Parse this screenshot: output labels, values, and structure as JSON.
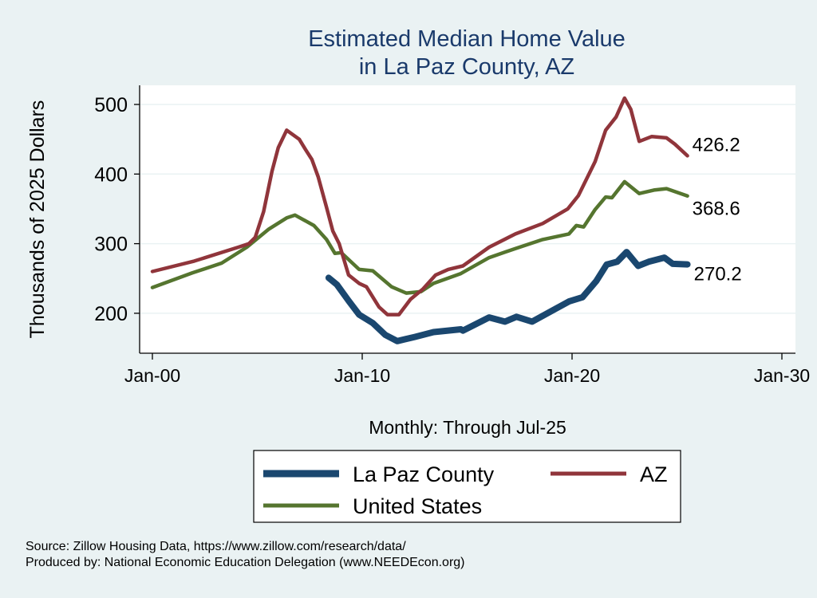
{
  "chart_data": {
    "type": "line",
    "title": [
      "Estimated Median Home Value",
      "in La Paz County, AZ"
    ],
    "xlabel": "Monthly: Through Jul-25",
    "ylabel": "Thousands of 2025 Dollars",
    "xlim": [
      2000,
      2030
    ],
    "ylim": [
      160,
      525
    ],
    "x_ticks": [
      {
        "value": 2000,
        "label": "Jan-00"
      },
      {
        "value": 2010,
        "label": "Jan-10"
      },
      {
        "value": 2020,
        "label": "Jan-20"
      },
      {
        "value": 2030,
        "label": "Jan-30"
      }
    ],
    "y_ticks": [
      200,
      300,
      400,
      500
    ],
    "grid": true,
    "legend_position": "bottom",
    "series": [
      {
        "name": "La Paz County",
        "color": "#1a476f",
        "end_label": "270.2",
        "points": [
          [
            2008.4,
            251
          ],
          [
            2008.8,
            241
          ],
          [
            2009.35,
            218
          ],
          [
            2009.85,
            198
          ],
          [
            2010.5,
            186
          ],
          [
            2011.1,
            169
          ],
          [
            2011.67,
            160
          ],
          [
            2012.5,
            166
          ],
          [
            2013.4,
            173
          ],
          [
            2014.7,
            177
          ],
          [
            2014.8,
            175
          ],
          [
            2016.05,
            194
          ],
          [
            2016.8,
            188
          ],
          [
            2017.35,
            195
          ],
          [
            2018.1,
            188
          ],
          [
            2019.25,
            207
          ],
          [
            2019.85,
            217
          ],
          [
            2020.5,
            223
          ],
          [
            2021.15,
            246
          ],
          [
            2021.65,
            270
          ],
          [
            2022.15,
            274
          ],
          [
            2022.6,
            288
          ],
          [
            2023.15,
            268
          ],
          [
            2023.65,
            274
          ],
          [
            2024.4,
            280
          ],
          [
            2024.8,
            271
          ],
          [
            2025.5,
            270.2
          ]
        ]
      },
      {
        "name": "AZ",
        "color": "#90353b",
        "end_label": "426.2",
        "points": [
          [
            2000,
            260
          ],
          [
            2002,
            275
          ],
          [
            2004.1,
            295
          ],
          [
            2004.6,
            300
          ],
          [
            2004.9,
            309
          ],
          [
            2005.3,
            346
          ],
          [
            2005.7,
            404
          ],
          [
            2006,
            438
          ],
          [
            2006.4,
            463
          ],
          [
            2007,
            450
          ],
          [
            2007.3,
            435
          ],
          [
            2007.6,
            421
          ],
          [
            2007.9,
            396
          ],
          [
            2008.3,
            352
          ],
          [
            2008.6,
            318
          ],
          [
            2008.9,
            300
          ],
          [
            2009.35,
            255
          ],
          [
            2009.85,
            243
          ],
          [
            2010.2,
            238
          ],
          [
            2010.8,
            209
          ],
          [
            2011.2,
            198
          ],
          [
            2011.75,
            198
          ],
          [
            2012.3,
            220
          ],
          [
            2012.9,
            235
          ],
          [
            2013.5,
            255
          ],
          [
            2014.1,
            263
          ],
          [
            2014.8,
            268
          ],
          [
            2016.05,
            295
          ],
          [
            2017.3,
            314
          ],
          [
            2018.6,
            329
          ],
          [
            2019.8,
            350
          ],
          [
            2020.3,
            369
          ],
          [
            2021.1,
            418
          ],
          [
            2021.6,
            463
          ],
          [
            2022.1,
            482
          ],
          [
            2022.5,
            509
          ],
          [
            2022.8,
            493
          ],
          [
            2023.2,
            447
          ],
          [
            2023.8,
            454
          ],
          [
            2024.5,
            452
          ],
          [
            2024.9,
            443
          ],
          [
            2025.5,
            426.2
          ]
        ]
      },
      {
        "name": "United States",
        "color": "#55752f",
        "end_label": "368.6",
        "points": [
          [
            2000,
            237
          ],
          [
            2001.9,
            258
          ],
          [
            2003.3,
            272
          ],
          [
            2004.5,
            295
          ],
          [
            2005.55,
            321
          ],
          [
            2006.4,
            337
          ],
          [
            2006.8,
            341
          ],
          [
            2007.7,
            326
          ],
          [
            2008.3,
            306
          ],
          [
            2008.7,
            286
          ],
          [
            2009,
            287
          ],
          [
            2009.85,
            263
          ],
          [
            2010.5,
            261
          ],
          [
            2011.4,
            238
          ],
          [
            2012.1,
            229
          ],
          [
            2012.8,
            231
          ],
          [
            2013.4,
            243
          ],
          [
            2014.7,
            257
          ],
          [
            2016.05,
            280
          ],
          [
            2017.3,
            293
          ],
          [
            2018.6,
            306
          ],
          [
            2019.85,
            314
          ],
          [
            2020.2,
            326
          ],
          [
            2020.55,
            324
          ],
          [
            2021.1,
            349
          ],
          [
            2021.6,
            367
          ],
          [
            2021.9,
            366
          ],
          [
            2022.5,
            389
          ],
          [
            2023.2,
            372
          ],
          [
            2023.9,
            377
          ],
          [
            2024.5,
            379
          ],
          [
            2025.5,
            368.6
          ]
        ]
      }
    ],
    "source_notes": [
      "Source: Zillow Housing Data, https://www.zillow.com/research/data/",
      "Produced by: National Economic Education Delegation (www.NEEDEcon.org)"
    ]
  }
}
